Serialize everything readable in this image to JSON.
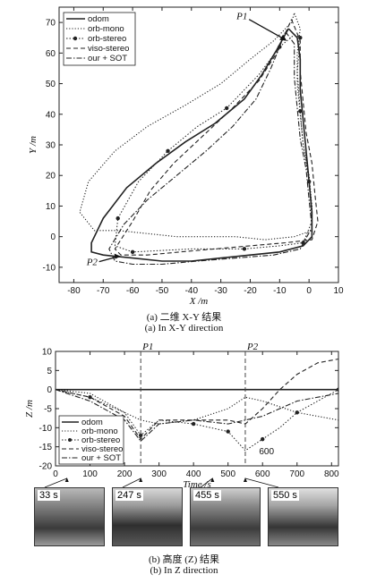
{
  "chart_data": [
    {
      "type": "line",
      "title": "",
      "xlabel": "X /m",
      "ylabel": "Y /m",
      "xlim": [
        -85,
        10
      ],
      "ylim": [
        -15,
        75
      ],
      "xticks": [
        -80,
        -70,
        -60,
        -50,
        -40,
        -30,
        -20,
        -10,
        0,
        10
      ],
      "yticks": [
        -10,
        0,
        10,
        20,
        30,
        40,
        50,
        60,
        70
      ],
      "legend": "top-left",
      "annotations": [
        {
          "text": "P1",
          "x": -7,
          "y": 64
        },
        {
          "text": "P2",
          "x": -72,
          "y": -7
        }
      ],
      "series": [
        {
          "name": "odom",
          "style": "solid",
          "points": [
            [
              -7,
              68
            ],
            [
              -4,
              65
            ],
            [
              -3,
              58
            ],
            [
              -3,
              48
            ],
            [
              -2,
              38
            ],
            [
              -1,
              28
            ],
            [
              0,
              18
            ],
            [
              1,
              8
            ],
            [
              1,
              0
            ],
            [
              -2,
              -3
            ],
            [
              -10,
              -5
            ],
            [
              -20,
              -6
            ],
            [
              -30,
              -7
            ],
            [
              -40,
              -8
            ],
            [
              -50,
              -8
            ],
            [
              -60,
              -7
            ],
            [
              -70,
              -6
            ],
            [
              -74,
              -5
            ],
            [
              -74,
              -2
            ],
            [
              -70,
              6
            ],
            [
              -62,
              16
            ],
            [
              -52,
              24
            ],
            [
              -42,
              31
            ],
            [
              -32,
              37
            ],
            [
              -22,
              45
            ],
            [
              -16,
              53
            ],
            [
              -11,
              61
            ],
            [
              -7,
              68
            ]
          ]
        },
        {
          "name": "orb-mono",
          "style": "dotted",
          "points": [
            [
              -5,
              73
            ],
            [
              -3,
              68
            ],
            [
              -4,
              60
            ],
            [
              -4,
              50
            ],
            [
              -3,
              40
            ],
            [
              -2,
              30
            ],
            [
              0,
              20
            ],
            [
              1,
              10
            ],
            [
              1,
              2
            ],
            [
              -5,
              0
            ],
            [
              -15,
              -1
            ],
            [
              -25,
              0
            ],
            [
              -35,
              0
            ],
            [
              -45,
              0
            ],
            [
              -55,
              1
            ],
            [
              -65,
              2
            ],
            [
              -73,
              2
            ],
            [
              -78,
              8
            ],
            [
              -75,
              18
            ],
            [
              -66,
              28
            ],
            [
              -55,
              36
            ],
            [
              -42,
              43
            ],
            [
              -30,
              50
            ],
            [
              -20,
              58
            ],
            [
              -12,
              64
            ],
            [
              -6,
              70
            ],
            [
              -5,
              73
            ]
          ]
        },
        {
          "name": "orb-stereo",
          "style": "dot-marker",
          "points": [
            [
              -5,
              66
            ],
            [
              -3,
              65
            ],
            [
              -4,
              54
            ],
            [
              -3,
              41
            ],
            [
              -2,
              30
            ],
            [
              0,
              18
            ],
            [
              1,
              5
            ],
            [
              -2,
              -2
            ],
            [
              -10,
              -3
            ],
            [
              -22,
              -4
            ],
            [
              -40,
              -4
            ],
            [
              -60,
              -5
            ],
            [
              -66,
              -3
            ],
            [
              -65,
              6
            ],
            [
              -58,
              18
            ],
            [
              -48,
              28
            ],
            [
              -38,
              36
            ],
            [
              -28,
              42
            ],
            [
              -17,
              53
            ],
            [
              -10,
              62
            ],
            [
              -5,
              66
            ]
          ]
        },
        {
          "name": "viso-stereo",
          "style": "dashed",
          "points": [
            [
              -6,
              71
            ],
            [
              -3,
              64
            ],
            [
              -3,
              54
            ],
            [
              -2,
              44
            ],
            [
              -1,
              34
            ],
            [
              1,
              24
            ],
            [
              2,
              14
            ],
            [
              3,
              5
            ],
            [
              1,
              -1
            ],
            [
              -8,
              -2
            ],
            [
              -20,
              -3
            ],
            [
              -32,
              -4
            ],
            [
              -44,
              -5
            ],
            [
              -55,
              -6
            ],
            [
              -64,
              -6
            ],
            [
              -66,
              -4
            ],
            [
              -60,
              5
            ],
            [
              -54,
              15
            ],
            [
              -46,
              24
            ],
            [
              -36,
              33
            ],
            [
              -26,
              42
            ],
            [
              -17,
              51
            ],
            [
              -11,
              60
            ],
            [
              -6,
              71
            ]
          ]
        },
        {
          "name": "our + SOT",
          "style": "dashdot",
          "points": [
            [
              -8,
              67
            ],
            [
              -5,
              63
            ],
            [
              -5,
              52
            ],
            [
              -4,
              42
            ],
            [
              -3,
              32
            ],
            [
              -1,
              22
            ],
            [
              0,
              12
            ],
            [
              1,
              3
            ],
            [
              -3,
              -4
            ],
            [
              -12,
              -6
            ],
            [
              -25,
              -7
            ],
            [
              -38,
              -8
            ],
            [
              -50,
              -9
            ],
            [
              -60,
              -9
            ],
            [
              -66,
              -8
            ],
            [
              -68,
              -4
            ],
            [
              -63,
              4
            ],
            [
              -55,
              12
            ],
            [
              -45,
              20
            ],
            [
              -35,
              28
            ],
            [
              -26,
              36
            ],
            [
              -18,
              45
            ],
            [
              -13,
              55
            ],
            [
              -10,
              62
            ],
            [
              -8,
              67
            ]
          ]
        }
      ]
    },
    {
      "type": "line",
      "title": "",
      "xlabel": "Time /s",
      "ylabel": "Z /m",
      "xlim": [
        0,
        820
      ],
      "ylim": [
        -20,
        10
      ],
      "xticks": [
        0,
        100,
        200,
        300,
        400,
        500,
        600,
        700,
        800
      ],
      "yticks": [
        -20,
        -15,
        -10,
        -5,
        0,
        5,
        10
      ],
      "legend": "bottom-left",
      "vlines": [
        {
          "label": "P1",
          "x": 247
        },
        {
          "label": "P2",
          "x": 550
        }
      ],
      "annotations": [
        {
          "text": "600",
          "x": 590,
          "y": -17
        }
      ],
      "series": [
        {
          "name": "odom",
          "style": "solid",
          "points": [
            [
              0,
              0
            ],
            [
              820,
              0
            ]
          ]
        },
        {
          "name": "orb-mono",
          "style": "dotted",
          "points": [
            [
              0,
              0
            ],
            [
              100,
              -1
            ],
            [
              200,
              -6
            ],
            [
              247,
              -8
            ],
            [
              300,
              -9
            ],
            [
              400,
              -8
            ],
            [
              500,
              -5
            ],
            [
              550,
              -2
            ],
            [
              600,
              -3
            ],
            [
              700,
              -6
            ],
            [
              820,
              -8
            ]
          ]
        },
        {
          "name": "orb-stereo",
          "style": "dot-marker",
          "points": [
            [
              0,
              0
            ],
            [
              100,
              -2
            ],
            [
              200,
              -6
            ],
            [
              247,
              -12
            ],
            [
              300,
              -8
            ],
            [
              400,
              -9
            ],
            [
              450,
              -10
            ],
            [
              500,
              -11
            ],
            [
              550,
              -16
            ],
            [
              600,
              -13
            ],
            [
              650,
              -10
            ],
            [
              700,
              -6
            ],
            [
              760,
              -3
            ],
            [
              820,
              0
            ]
          ]
        },
        {
          "name": "viso-stereo",
          "style": "dashed",
          "points": [
            [
              0,
              0
            ],
            [
              100,
              -2
            ],
            [
              200,
              -7
            ],
            [
              247,
              -13
            ],
            [
              300,
              -8
            ],
            [
              400,
              -8
            ],
            [
              500,
              -8
            ],
            [
              550,
              -9
            ],
            [
              600,
              -5
            ],
            [
              650,
              0
            ],
            [
              700,
              4
            ],
            [
              760,
              7
            ],
            [
              820,
              8
            ]
          ]
        },
        {
          "name": "our + SOT",
          "style": "dashdot",
          "points": [
            [
              0,
              0
            ],
            [
              100,
              -3
            ],
            [
              200,
              -8
            ],
            [
              247,
              -13.5
            ],
            [
              300,
              -9
            ],
            [
              400,
              -8
            ],
            [
              500,
              -9
            ],
            [
              550,
              -8
            ],
            [
              600,
              -7
            ],
            [
              700,
              -3
            ],
            [
              820,
              -1
            ]
          ]
        }
      ]
    }
  ],
  "captions": {
    "top_zh": "(a) 二维 X-Y 结果",
    "top_en": "(a) In X-Y direction",
    "bottom_zh": "(b) 高度 (Z) 结果",
    "bottom_en": "(b) In Z direction"
  },
  "thumbnails": [
    "33 s",
    "247 s",
    "455 s",
    "550 s"
  ],
  "thumb_times": [
    33,
    247,
    455,
    550
  ]
}
